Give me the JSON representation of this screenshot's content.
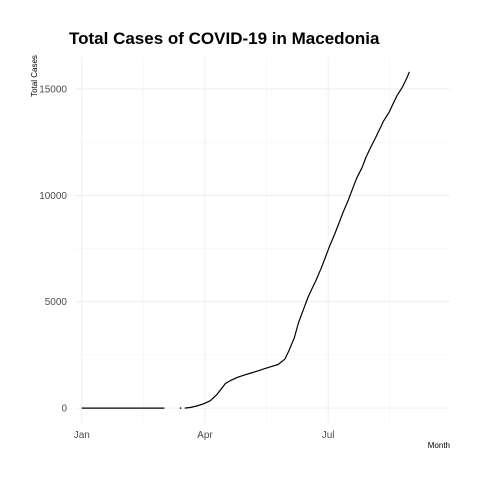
{
  "chart_data": {
    "type": "line",
    "title": "Total Cases of COVID-19 in Macedonia",
    "xlabel": "Month",
    "ylabel": "Total Cases",
    "x_ticks": [
      {
        "label": "Jan",
        "day": 0
      },
      {
        "label": "Apr",
        "day": 91
      },
      {
        "label": "Jul",
        "day": 182
      }
    ],
    "y_ticks": [
      0,
      5000,
      10000,
      15000
    ],
    "xlim_days": [
      -5,
      272
    ],
    "ylim": [
      -700,
      16500
    ],
    "grid": true,
    "series": [
      {
        "segments": [
          [
            [
              0,
              0
            ],
            [
              20,
              0
            ],
            [
              40,
              0
            ],
            [
              61,
              0
            ]
          ],
          [
            [
              73,
              0
            ]
          ],
          [
            [
              76,
              0
            ],
            [
              80,
              30
            ],
            [
              85,
              100
            ],
            [
              90,
              200
            ],
            [
              95,
              350
            ],
            [
              100,
              650
            ],
            [
              103,
              900
            ],
            [
              106,
              1150
            ],
            [
              110,
              1300
            ],
            [
              115,
              1450
            ],
            [
              120,
              1550
            ],
            [
              125,
              1650
            ],
            [
              130,
              1750
            ],
            [
              135,
              1850
            ],
            [
              140,
              1950
            ],
            [
              145,
              2050
            ],
            [
              150,
              2300
            ],
            [
              153,
              2700
            ],
            [
              157,
              3300
            ],
            [
              160,
              4000
            ],
            [
              163,
              4500
            ],
            [
              167,
              5200
            ],
            [
              170,
              5600
            ],
            [
              173,
              6000
            ],
            [
              177,
              6600
            ],
            [
              180,
              7100
            ],
            [
              183,
              7600
            ],
            [
              187,
              8200
            ],
            [
              190,
              8700
            ],
            [
              193,
              9200
            ],
            [
              197,
              9800
            ],
            [
              200,
              10300
            ],
            [
              203,
              10800
            ],
            [
              207,
              11300
            ],
            [
              210,
              11800
            ],
            [
              213,
              12200
            ],
            [
              217,
              12700
            ],
            [
              220,
              13100
            ],
            [
              223,
              13500
            ],
            [
              227,
              13900
            ],
            [
              230,
              14300
            ],
            [
              233,
              14700
            ],
            [
              237,
              15100
            ],
            [
              240,
              15500
            ],
            [
              242,
              15800
            ]
          ]
        ]
      }
    ]
  }
}
